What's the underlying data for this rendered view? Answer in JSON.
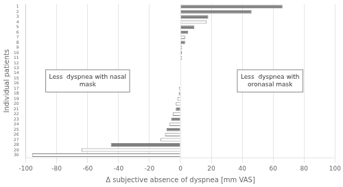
{
  "chart_data": {
    "type": "bar",
    "orientation": "horizontal",
    "xlabel": "Δ subjective absence of dyspnea [mm VAS]",
    "ylabel": "Individual patients",
    "categories": [
      "1",
      "2",
      "3",
      "4",
      "5",
      "6",
      "7",
      "8",
      "9",
      "10",
      "11",
      "12",
      "13",
      "14",
      "15",
      "16",
      "17",
      "18",
      "19",
      "20",
      "21",
      "22",
      "23",
      "24",
      "25",
      "26",
      "27",
      "28",
      "29",
      "30"
    ],
    "values": [
      66,
      46,
      18,
      17,
      9,
      5,
      3,
      3,
      1,
      1,
      1,
      0,
      0,
      0,
      0,
      0,
      -1,
      -1,
      -2,
      -3,
      -3,
      -5,
      -6,
      -7,
      -9,
      -10,
      -13,
      -45,
      -64,
      -96
    ],
    "colors": [
      "#808080",
      "#808080",
      "#808080",
      "#ffffff",
      "#808080",
      "#808080",
      "#ffffff",
      "#808080",
      "#ffffff",
      "#808080",
      "#ffffff",
      "#ffffff",
      "#ffffff",
      "#ffffff",
      "#808080",
      "#ffffff",
      "#ffffff",
      "#808080",
      "#ffffff",
      "#ffffff",
      "#808080",
      "#ffffff",
      "#808080",
      "#ffffff",
      "#808080",
      "#ffffff",
      "#ffffff",
      "#808080",
      "#ffffff",
      "#ffffff"
    ],
    "xlim": [
      -100,
      100
    ],
    "xticks": [
      -100,
      -80,
      -60,
      -40,
      -20,
      0,
      20,
      40,
      60,
      80,
      100
    ],
    "grid": "x",
    "annotations": [
      "Less  dyspnea with nasal\nmask",
      "Less  dyspnea with\noronasal mask"
    ]
  }
}
